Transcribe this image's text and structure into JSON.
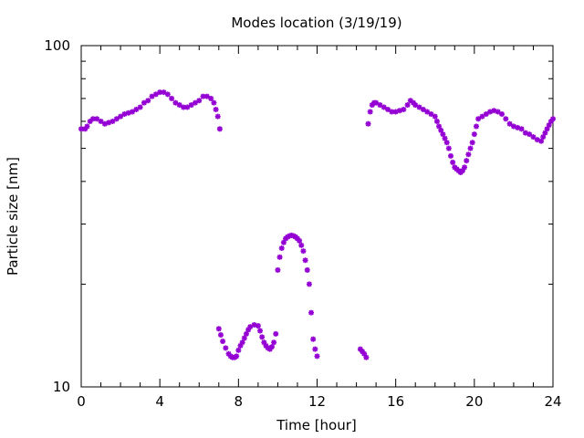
{
  "chart_data": {
    "type": "scatter",
    "title": "Modes location (3/19/19)",
    "xlabel": "Time [hour]",
    "ylabel": "Particle size [nm]",
    "xlim": [
      0,
      24
    ],
    "ylim": [
      10,
      100
    ],
    "yscale": "log",
    "grid": false,
    "marker_color": "#9400d3",
    "x_ticks": [
      0,
      4,
      8,
      12,
      16,
      20,
      24
    ],
    "x_tick_labels": [
      "0",
      "4",
      "8",
      "12",
      "16",
      "20",
      "24"
    ],
    "y_ticks": [
      10,
      100
    ],
    "y_tick_labels": [
      "10",
      "100"
    ],
    "series": [
      {
        "points": [
          [
            0.0,
            57
          ],
          [
            0.2,
            57
          ],
          [
            0.3,
            58
          ],
          [
            0.45,
            60
          ],
          [
            0.6,
            61
          ],
          [
            0.8,
            61
          ],
          [
            1.0,
            60
          ],
          [
            1.2,
            59
          ],
          [
            1.4,
            59.5
          ],
          [
            1.6,
            60
          ],
          [
            1.8,
            61
          ],
          [
            2.0,
            62
          ],
          [
            2.2,
            63
          ],
          [
            2.4,
            63.5
          ],
          [
            2.6,
            64
          ],
          [
            2.8,
            65
          ],
          [
            3.0,
            66
          ],
          [
            3.2,
            68
          ],
          [
            3.4,
            69
          ],
          [
            3.6,
            71
          ],
          [
            3.8,
            72
          ],
          [
            4.0,
            73
          ],
          [
            4.2,
            73
          ],
          [
            4.4,
            72
          ],
          [
            4.6,
            70
          ],
          [
            4.8,
            68
          ],
          [
            5.0,
            67
          ],
          [
            5.2,
            66
          ],
          [
            5.4,
            66
          ],
          [
            5.6,
            67
          ],
          [
            5.8,
            68
          ],
          [
            6.0,
            69
          ],
          [
            6.2,
            71
          ],
          [
            6.4,
            71
          ],
          [
            6.6,
            70
          ],
          [
            6.75,
            68
          ],
          [
            6.85,
            65
          ],
          [
            6.95,
            62
          ],
          [
            7.05,
            57
          ],
          [
            7.0,
            14.8
          ],
          [
            7.1,
            14.2
          ],
          [
            7.2,
            13.6
          ],
          [
            7.35,
            13.0
          ],
          [
            7.5,
            12.5
          ],
          [
            7.6,
            12.3
          ],
          [
            7.7,
            12.2
          ],
          [
            7.8,
            12.2
          ],
          [
            7.9,
            12.3
          ],
          [
            8.0,
            12.8
          ],
          [
            8.1,
            13.2
          ],
          [
            8.2,
            13.5
          ],
          [
            8.3,
            13.9
          ],
          [
            8.4,
            14.3
          ],
          [
            8.5,
            14.7
          ],
          [
            8.6,
            15.0
          ],
          [
            8.8,
            15.2
          ],
          [
            9.0,
            15.1
          ],
          [
            9.1,
            14.6
          ],
          [
            9.2,
            14.0
          ],
          [
            9.3,
            13.5
          ],
          [
            9.4,
            13.2
          ],
          [
            9.5,
            13.0
          ],
          [
            9.6,
            12.9
          ],
          [
            9.7,
            13.1
          ],
          [
            9.8,
            13.5
          ],
          [
            9.9,
            14.3
          ],
          [
            10.0,
            22
          ],
          [
            10.1,
            24
          ],
          [
            10.2,
            25.5
          ],
          [
            10.3,
            26.5
          ],
          [
            10.4,
            27.2
          ],
          [
            10.5,
            27.5
          ],
          [
            10.6,
            27.7
          ],
          [
            10.7,
            27.8
          ],
          [
            10.8,
            27.7
          ],
          [
            10.9,
            27.5
          ],
          [
            11.0,
            27.2
          ],
          [
            11.1,
            26.8
          ],
          [
            11.2,
            26.0
          ],
          [
            11.3,
            25.0
          ],
          [
            11.4,
            23.5
          ],
          [
            11.5,
            22.0
          ],
          [
            11.6,
            20.0
          ],
          [
            11.7,
            16.5
          ],
          [
            11.8,
            13.8
          ],
          [
            11.9,
            12.9
          ],
          [
            12.0,
            12.3
          ],
          [
            14.2,
            12.9
          ],
          [
            14.3,
            12.7
          ],
          [
            14.4,
            12.5
          ],
          [
            14.5,
            12.2
          ],
          [
            14.6,
            59
          ],
          [
            14.7,
            64
          ],
          [
            14.8,
            67
          ],
          [
            14.9,
            68
          ],
          [
            15.0,
            68
          ],
          [
            15.2,
            67
          ],
          [
            15.4,
            66
          ],
          [
            15.6,
            65
          ],
          [
            15.8,
            64
          ],
          [
            16.0,
            64
          ],
          [
            16.2,
            64.5
          ],
          [
            16.4,
            65
          ],
          [
            16.6,
            67
          ],
          [
            16.75,
            69
          ],
          [
            16.9,
            68
          ],
          [
            17.0,
            67
          ],
          [
            17.2,
            66
          ],
          [
            17.4,
            65
          ],
          [
            17.6,
            64
          ],
          [
            17.8,
            63
          ],
          [
            18.0,
            62
          ],
          [
            18.1,
            60
          ],
          [
            18.2,
            58
          ],
          [
            18.3,
            56.5
          ],
          [
            18.4,
            55
          ],
          [
            18.5,
            53.5
          ],
          [
            18.6,
            52
          ],
          [
            18.7,
            50
          ],
          [
            18.8,
            47.5
          ],
          [
            18.9,
            45.5
          ],
          [
            19.0,
            44
          ],
          [
            19.1,
            43.5
          ],
          [
            19.2,
            43
          ],
          [
            19.3,
            42.5
          ],
          [
            19.4,
            43
          ],
          [
            19.5,
            44
          ],
          [
            19.6,
            46
          ],
          [
            19.7,
            48
          ],
          [
            19.8,
            50
          ],
          [
            19.9,
            52
          ],
          [
            20.0,
            55
          ],
          [
            20.1,
            58
          ],
          [
            20.2,
            61
          ],
          [
            20.4,
            62
          ],
          [
            20.6,
            63
          ],
          [
            20.8,
            64
          ],
          [
            21.0,
            64.5
          ],
          [
            21.2,
            64
          ],
          [
            21.4,
            63
          ],
          [
            21.6,
            61
          ],
          [
            21.8,
            59
          ],
          [
            22.0,
            58
          ],
          [
            22.2,
            57.5
          ],
          [
            22.4,
            57
          ],
          [
            22.6,
            55.5
          ],
          [
            22.8,
            55
          ],
          [
            23.0,
            54
          ],
          [
            23.2,
            53
          ],
          [
            23.4,
            52.5
          ],
          [
            23.5,
            54
          ],
          [
            23.6,
            55.5
          ],
          [
            23.7,
            57
          ],
          [
            23.8,
            58.5
          ],
          [
            23.9,
            60
          ],
          [
            24.0,
            61
          ]
        ]
      }
    ]
  }
}
